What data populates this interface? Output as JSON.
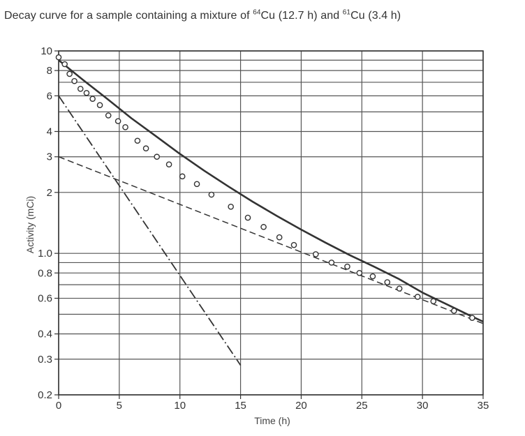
{
  "title": {
    "prefix": "Decay curve for a sample containing a mixture of ",
    "iso1_mass": "64",
    "iso1_rest": "Cu (12.7 h) and ",
    "iso2_mass": "61",
    "iso2_rest": "Cu (3.4 h)"
  },
  "chart_data": {
    "type": "line",
    "title": "Decay curve for a sample containing a mixture of 64Cu (12.7 h) and 61Cu (3.4 h)",
    "xlabel": "Time (h)",
    "ylabel": "Activity (mCi)",
    "xlim": [
      0,
      35
    ],
    "ylim": [
      0.2,
      10
    ],
    "yscale": "log",
    "grid": true,
    "legend": "none",
    "xticks": [
      0,
      5,
      10,
      15,
      20,
      25,
      30,
      35
    ],
    "xtick_labels": [
      "0",
      "5",
      "10",
      "15",
      "20",
      "25",
      "30",
      "35"
    ],
    "yticks": [
      0.2,
      0.3,
      0.4,
      0.6,
      0.8,
      1.0,
      2,
      3,
      4,
      6,
      8,
      10
    ],
    "ytick_labels": [
      "0.2",
      "0.3",
      "0.4",
      "0.6",
      "0.8",
      "1.0",
      "2",
      "3",
      "4",
      "6",
      "8",
      "10"
    ],
    "grid_y": [
      0.2,
      0.3,
      0.4,
      0.5,
      0.6,
      0.7,
      0.8,
      0.9,
      1.0,
      2,
      3,
      4,
      5,
      6,
      7,
      8,
      9,
      10
    ],
    "series": [
      {
        "style": "solid",
        "color": "#333333",
        "x": [
          0,
          2,
          4,
          6,
          8,
          10,
          12,
          14,
          16,
          18,
          20,
          22,
          24,
          26,
          28,
          30,
          32,
          34,
          35
        ],
        "y": [
          9.0,
          7.2,
          5.8,
          4.65,
          3.8,
          3.1,
          2.56,
          2.14,
          1.8,
          1.53,
          1.31,
          1.13,
          0.98,
          0.86,
          0.75,
          0.64,
          0.56,
          0.49,
          0.46
        ]
      },
      {
        "style": "dashed",
        "color": "#333333",
        "x": [
          0,
          35
        ],
        "y": [
          3.0,
          0.45
        ]
      },
      {
        "style": "dash-dot",
        "color": "#333333",
        "x": [
          0,
          15
        ],
        "y": [
          6.0,
          0.28
        ]
      },
      {
        "style": "markers",
        "marker": "open-circle",
        "color": "#333333",
        "x": [
          0,
          0.5,
          0.9,
          1.3,
          1.8,
          2.3,
          2.8,
          3.4,
          4.1,
          4.9,
          5.5,
          6.5,
          7.2,
          8.1,
          9.1,
          10.2,
          11.4,
          12.6,
          14.2,
          15.6,
          16.9,
          18.2,
          19.4,
          21.2,
          22.5,
          23.8,
          24.8,
          25.9,
          27.1,
          28.1,
          29.6,
          30.9,
          32.6,
          34.1
        ],
        "y": [
          9.3,
          8.6,
          7.7,
          7.1,
          6.5,
          6.2,
          5.8,
          5.4,
          4.8,
          4.5,
          4.2,
          3.6,
          3.3,
          3.0,
          2.75,
          2.4,
          2.2,
          1.95,
          1.7,
          1.5,
          1.35,
          1.2,
          1.1,
          0.99,
          0.9,
          0.86,
          0.8,
          0.77,
          0.72,
          0.67,
          0.61,
          0.58,
          0.52,
          0.48
        ]
      }
    ]
  }
}
